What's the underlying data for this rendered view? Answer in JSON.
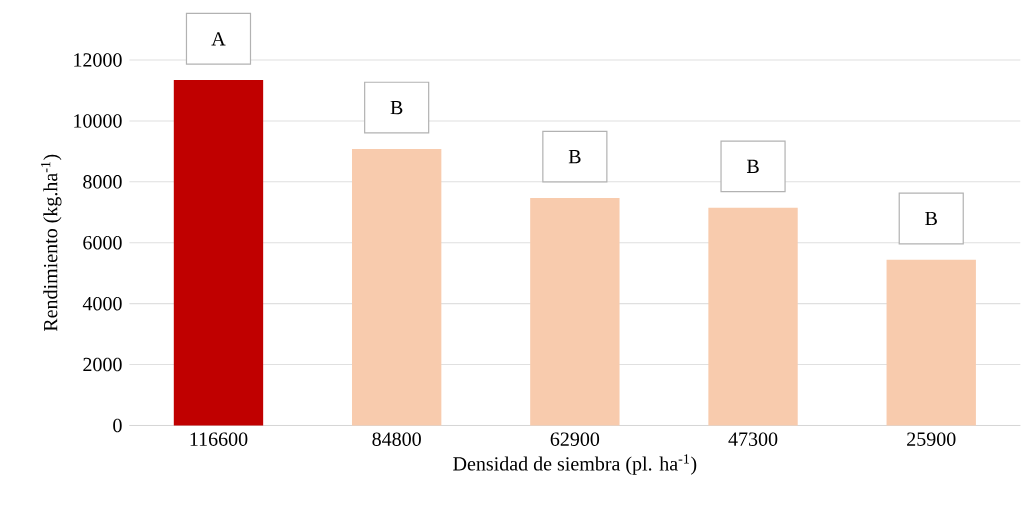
{
  "chart_data": {
    "type": "bar",
    "xlabel": "Densidad de siembra (pl. ha$^{-1}$)",
    "ylabel": "Rendimiento (kg.ha$^{-1}$)",
    "categories": [
      "116600",
      "84800",
      "62900",
      "47300",
      "25900"
    ],
    "values": [
      11340,
      9080,
      7470,
      7150,
      5440
    ],
    "colors": [
      "#c00000",
      "#f8cbad",
      "#f8cbad",
      "#f8cbad",
      "#f8cbad"
    ],
    "ylim": [
      0,
      12000
    ],
    "yticks": [
      0,
      2000,
      4000,
      6000,
      8000,
      10000,
      12000
    ],
    "grid": "y",
    "annotations": [
      {
        "text": "A",
        "x": "116600",
        "y": 11340
      },
      {
        "text": "B",
        "x": "84800",
        "y": 9080
      },
      {
        "text": "B",
        "x": "62900",
        "y": 7470
      },
      {
        "text": "B",
        "x": "47300",
        "y": 7150
      },
      {
        "text": "B",
        "x": "25900",
        "y": 5440
      }
    ]
  }
}
